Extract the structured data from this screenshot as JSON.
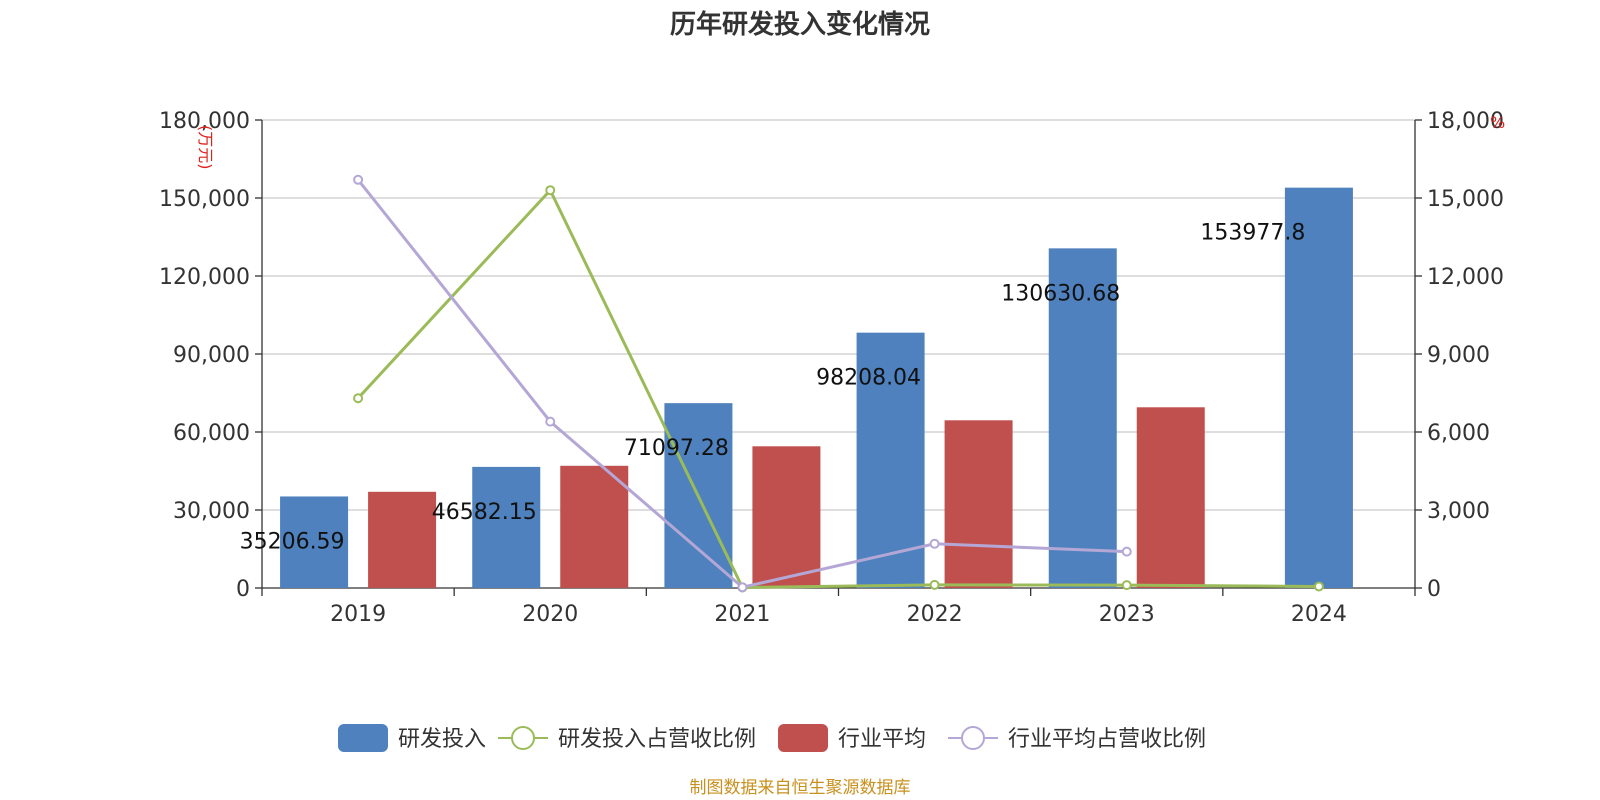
{
  "chart_data": {
    "type": "bar",
    "title": "历年研发投入变化情况",
    "categories": [
      "2019",
      "2020",
      "2021",
      "2022",
      "2023",
      "2024"
    ],
    "y_left": {
      "unit": "(万元)",
      "ylim": [
        0,
        180000
      ],
      "ticks": [
        0,
        30000,
        60000,
        90000,
        120000,
        150000,
        180000
      ],
      "tick_labels": [
        "0",
        "30,000",
        "60,000",
        "90,000",
        "120,000",
        "150,000",
        "180,000"
      ]
    },
    "y_right": {
      "unit": "%",
      "ylim": [
        0,
        18000
      ],
      "ticks": [
        0,
        3000,
        6000,
        9000,
        12000,
        15000,
        18000
      ],
      "tick_labels": [
        "0",
        "3,000",
        "6,000",
        "9,000",
        "12,000",
        "15,000",
        "18,000"
      ]
    },
    "series": [
      {
        "name": "研发投入",
        "kind": "bar",
        "axis": "left",
        "color": "#4e81bd",
        "values": [
          35206.59,
          46582.15,
          71097.28,
          98208.04,
          130630.68,
          153977.8
        ],
        "labels": [
          "35206.59",
          "46582.15",
          "71097.28",
          "98208.04",
          "130630.68",
          "153977.8"
        ]
      },
      {
        "name": "研发投入占营收比例",
        "kind": "line",
        "axis": "right",
        "color": "#9bbb59",
        "values": [
          7300,
          15300,
          20,
          120,
          110,
          60
        ]
      },
      {
        "name": "行业平均",
        "kind": "bar",
        "axis": "left",
        "color": "#c0504d",
        "values": [
          37000,
          47000,
          54500,
          64500,
          69500,
          null
        ]
      },
      {
        "name": "行业平均占营收比例",
        "kind": "line",
        "axis": "right",
        "color": "#b4a7d6",
        "values": [
          15700,
          6400,
          30,
          1700,
          1400,
          null
        ]
      }
    ],
    "grid": true,
    "legend_position": "bottom"
  },
  "source_note": "制图数据来自恒生聚源数据库"
}
